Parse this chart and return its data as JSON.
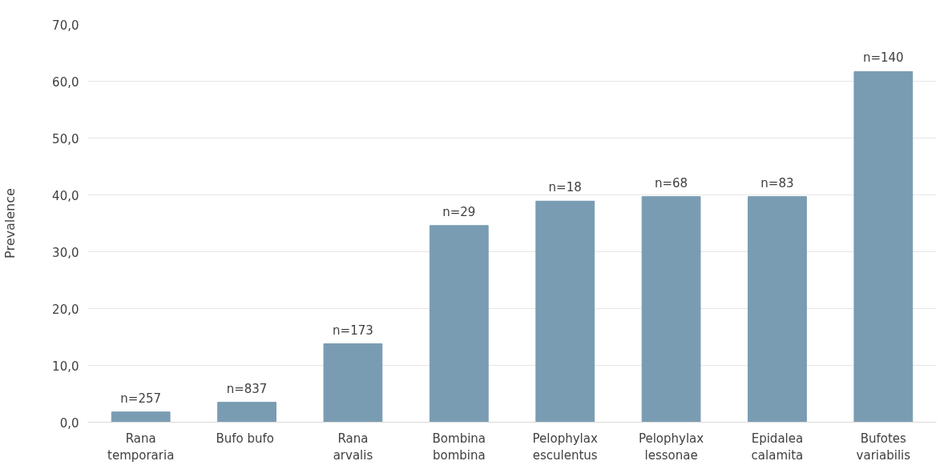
{
  "chart_data": {
    "type": "bar",
    "ylabel": "Prevalence",
    "categories": [
      "Rana\ntemporaria",
      "Bufo  bufo",
      "Rana\narvalis",
      "Bombina\nbombina",
      "Pelophylax\nesculentus",
      "Pelophylax\nlessonae",
      "Epidalea\ncalamita",
      "Bufotes\nvariabilis"
    ],
    "values": [
      1.8,
      3.5,
      13.8,
      34.6,
      38.9,
      39.7,
      39.7,
      61.7
    ],
    "annotations": [
      {
        "text": "n=257",
        "x": "Rana\ntemporaria",
        "y": 1.8
      },
      {
        "text": "n=837",
        "x": "Bufo  bufo",
        "y": 3.5
      },
      {
        "text": "n=173",
        "x": "Rana\narvalis",
        "y": 13.8
      },
      {
        "text": "n=29",
        "x": "Bombina\nbombina",
        "y": 34.6
      },
      {
        "text": "n=18",
        "x": "Pelophylax\nesculentus",
        "y": 38.9
      },
      {
        "text": "n=68",
        "x": "Pelophylax\nlessonae",
        "y": 39.7
      },
      {
        "text": "n=83",
        "x": "Epidalea\ncalamita",
        "y": 39.7
      },
      {
        "text": "n=140",
        "x": "Bufotes\nvariabilis",
        "y": 61.7
      }
    ],
    "color": "#7a9cb2",
    "ylim": [
      0,
      70
    ],
    "yticks": [
      {
        "value": 0,
        "label": "0,0"
      },
      {
        "value": 10,
        "label": "10,0"
      },
      {
        "value": 20,
        "label": "20,0"
      },
      {
        "value": 30,
        "label": "30,0"
      },
      {
        "value": 40,
        "label": "40,0"
      },
      {
        "value": 50,
        "label": "50,0"
      },
      {
        "value": 60,
        "label": "60,0"
      },
      {
        "value": 70,
        "label": "70,0"
      }
    ],
    "grid": "y"
  }
}
